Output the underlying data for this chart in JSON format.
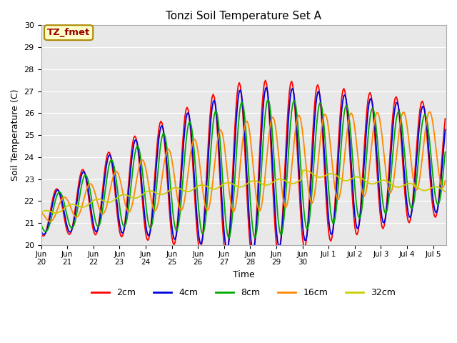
{
  "title": "Tonzi Soil Temperature Set A",
  "xlabel": "Time",
  "ylabel": "Soil Temperature (C)",
  "ylim": [
    20.0,
    30.0
  ],
  "yticks": [
    20.0,
    21.0,
    22.0,
    23.0,
    24.0,
    25.0,
    26.0,
    27.0,
    28.0,
    29.0,
    30.0
  ],
  "bg_color": "#e8e8e8",
  "annotation_text": "TZ_fmet",
  "annotation_bg": "#ffffcc",
  "annotation_border": "#aa8800",
  "annotation_text_color": "#990000",
  "legend_labels": [
    "2cm",
    "4cm",
    "8cm",
    "16cm",
    "32cm"
  ],
  "line_colors": [
    "#ff0000",
    "#0000dd",
    "#00aa00",
    "#ff8800",
    "#cccc00"
  ],
  "tick_labels_june": [
    "Jun\n20",
    "Jun\n21",
    "Jun\n22",
    "Jun\n23",
    "Jun\n24",
    "Jun\n25",
    "Jun\n26",
    "Jun\n27",
    "Jun\n28",
    "Jun\n29",
    "Jun\n30"
  ],
  "tick_labels_july": [
    "Jul 1",
    "Jul 2",
    "Jul 3",
    "Jul 4",
    "Jul 5"
  ]
}
